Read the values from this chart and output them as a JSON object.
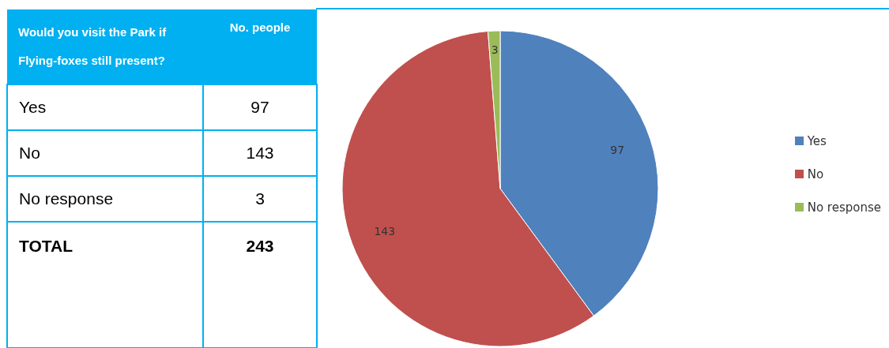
{
  "chart_data": {
    "type": "pie",
    "categories": [
      "Yes",
      "No",
      "No response"
    ],
    "values": [
      97,
      143,
      3
    ],
    "colors": [
      "#4f81bd",
      "#c0504d",
      "#9bbb59"
    ],
    "data_labels": true,
    "legend": "right",
    "annotations": [
      "Would you visit the Park if Flying-foxes still present?",
      "No. people",
      "97",
      "143",
      "3",
      "TOTAL",
      "243"
    ]
  }
}
